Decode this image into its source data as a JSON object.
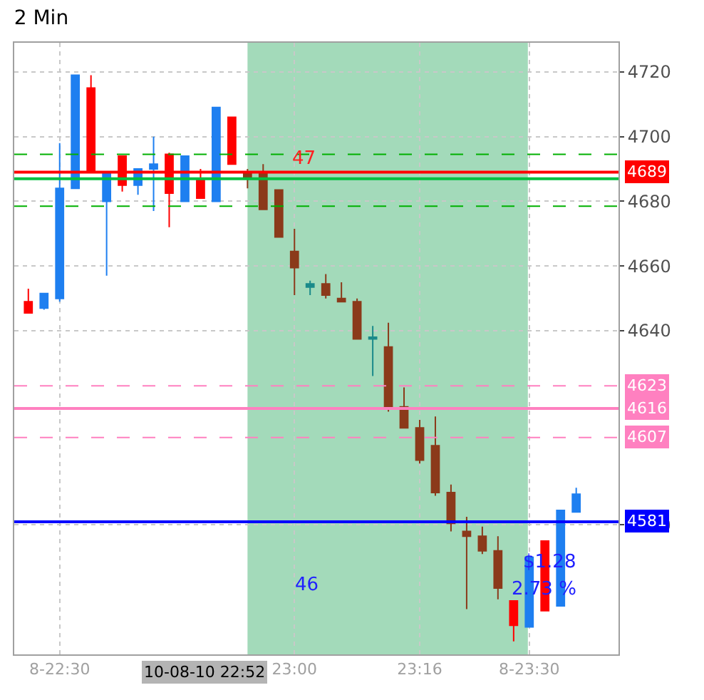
{
  "chart_data": {
    "type": "candlestick",
    "title": "2 Min",
    "x": [
      22.4333,
      22.4667,
      22.5,
      22.5333,
      22.5667,
      22.6,
      22.6333,
      22.6667,
      22.7,
      22.7333,
      22.7667,
      22.8,
      22.8333,
      22.8667,
      22.9,
      22.9333,
      22.9667,
      23.0,
      23.0333,
      23.0667,
      23.1,
      23.1333,
      23.1667,
      23.2,
      23.2333,
      23.2667,
      23.3,
      23.3333,
      23.3667,
      23.4,
      23.4333,
      23.4667,
      23.5,
      23.5333,
      23.5667,
      23.6
    ],
    "ohlc": [
      [
        4649,
        4653,
        4645.5,
        4645.5
      ],
      [
        4647,
        4651.5,
        4646.5,
        4651.5
      ],
      [
        4650,
        4698,
        4649,
        4684
      ],
      [
        4684,
        4719,
        4684,
        4719
      ],
      [
        4715,
        4719,
        4689,
        4689
      ],
      [
        4680,
        4688.5,
        4657,
        4688.5
      ],
      [
        4694,
        4694,
        4683,
        4685
      ],
      [
        4685,
        4690,
        4682,
        4690
      ],
      [
        4690,
        4700,
        4677,
        4691.5
      ],
      [
        4694.5,
        4695,
        4672,
        4682.5
      ],
      [
        4680,
        4694,
        4680,
        4694
      ],
      [
        4687,
        4690,
        4681,
        4681
      ],
      [
        4680,
        4709,
        4680,
        4709
      ],
      [
        4706,
        4706,
        4691.5,
        4691.5
      ],
      [
        4689,
        4690,
        4684,
        4687
      ],
      [
        4689,
        4691.5,
        4677.5,
        4677.5
      ],
      [
        4683.5,
        4683.5,
        4669,
        4669
      ],
      [
        4664.5,
        4671.5,
        4651,
        4659.5
      ],
      [
        4654.5,
        4655.5,
        4651,
        4653.5
      ],
      [
        4654.5,
        4657.5,
        4650,
        4651
      ],
      [
        4650,
        4655,
        4649,
        4649
      ],
      [
        4649,
        4650,
        4637.5,
        4637.5
      ],
      [
        4638,
        4641.5,
        4626,
        4637.5
      ],
      [
        4635,
        4642.5,
        4615,
        4616.5
      ],
      [
        4616.5,
        4622.5,
        4610,
        4610
      ],
      [
        4610,
        4612.5,
        4599,
        4600
      ],
      [
        4604.5,
        4613.5,
        4589,
        4590
      ],
      [
        4590,
        4592.5,
        4578,
        4580.5
      ],
      [
        4578,
        4582.5,
        4554,
        4576.5
      ],
      [
        4576.5,
        4579.5,
        4571,
        4572
      ],
      [
        4572,
        4576.5,
        4557,
        4560.5
      ],
      [
        4556.5,
        4556.5,
        4544,
        4549
      ],
      [
        4548.5,
        4570,
        4548.5,
        4570
      ],
      [
        4575,
        4575,
        4553.5,
        4553.5
      ],
      [
        4555,
        4584.5,
        4555,
        4584.5
      ],
      [
        4584,
        4591.5,
        4584,
        4589.5
      ]
    ],
    "colors": [
      "#ff0000",
      "#1e7ff0",
      "#1e7ff0",
      "#1e7ff0",
      "#ff0000",
      "#1e7ff0",
      "#ff0000",
      "#1e7ff0",
      "#1e7ff0",
      "#ff0000",
      "#1e7ff0",
      "#ff0000",
      "#1e7ff0",
      "#ff0000",
      "#8b3a1a",
      "#8b3a1a",
      "#8b3a1a",
      "#8b3a1a",
      "#1a8a8a",
      "#8b3a1a",
      "#8b3a1a",
      "#8b3a1a",
      "#1a8a8a",
      "#8b3a1a",
      "#8b3a1a",
      "#8b3a1a",
      "#8b3a1a",
      "#8b3a1a",
      "#8b3a1a",
      "#8b3a1a",
      "#8b3a1a",
      "#ff0000",
      "#1e7ff0",
      "#ff0000",
      "#1e7ff0",
      "#1e7ff0"
    ],
    "xlim": [
      22.4033,
      23.69
    ],
    "xticks": [
      {
        "value": 22.5,
        "label": "8-22:30"
      },
      {
        "value": 23.0,
        "label": "23:00"
      },
      {
        "value": 23.2667,
        "label": "23:16"
      },
      {
        "value": 23.5,
        "label": "8-23:30"
      }
    ],
    "ylim": [
      4540,
      4729
    ],
    "yticks": [
      4580,
      4640,
      4660,
      4680,
      4700,
      4720
    ],
    "grid": true,
    "ref_lines": [
      {
        "axis": "y",
        "value": 4694.5,
        "label": null,
        "color": "#00b000",
        "line_style": "dashed"
      },
      {
        "axis": "y",
        "value": 4678.5,
        "label": null,
        "color": "#00b000",
        "line_style": "dashed"
      },
      {
        "axis": "y",
        "value": 4687,
        "label": null,
        "color": "#00c040",
        "line_style": "solid"
      },
      {
        "axis": "y",
        "value": 4689,
        "label": "4689",
        "color": "#ff0000",
        "line_style": "solid"
      },
      {
        "axis": "y",
        "value": 4623,
        "label": "4623",
        "color": "#ff80c0",
        "line_style": "dashed"
      },
      {
        "axis": "y",
        "value": 4616,
        "label": "4616",
        "color": "#ff80c0",
        "line_style": "solid"
      },
      {
        "axis": "y",
        "value": 4607,
        "label": "4607",
        "color": "#ff80c0",
        "line_style": "dashed"
      },
      {
        "axis": "y",
        "value": 4581,
        "label": "4581",
        "color": "#0000ff",
        "line_style": "solid"
      }
    ],
    "bands": [
      {
        "axis": "x",
        "from": 22.9,
        "to": 23.497,
        "label": null,
        "color": "#99d6b3"
      }
    ],
    "annotations": [
      {
        "text": "47",
        "x": 23.02,
        "y": 4693
      },
      "10-08-10 22:52",
      "46",
      "$1.28",
      "2.73 %"
    ]
  }
}
